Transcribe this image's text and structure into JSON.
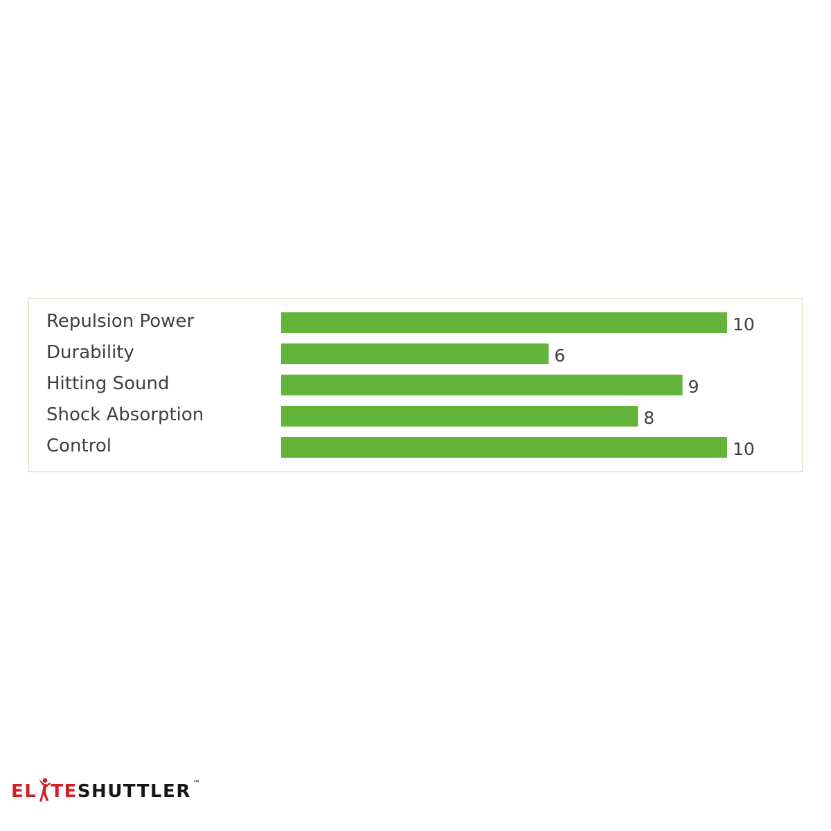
{
  "chart_data": {
    "type": "bar",
    "orientation": "horizontal",
    "categories": [
      "Repulsion Power",
      "Durability",
      "Hitting Sound",
      "Shock Absorption",
      "Control"
    ],
    "values": [
      10,
      6,
      9,
      8,
      10
    ],
    "xlim": [
      0,
      10
    ],
    "grid": false,
    "legend": "none",
    "bar_color": "#62b53a",
    "frame_color": "#dcefd4"
  },
  "brand": {
    "part1": "EL",
    "part2": "TE",
    "part3": "SHUTTLER",
    "trademark": "™",
    "red": "#d11f26"
  }
}
